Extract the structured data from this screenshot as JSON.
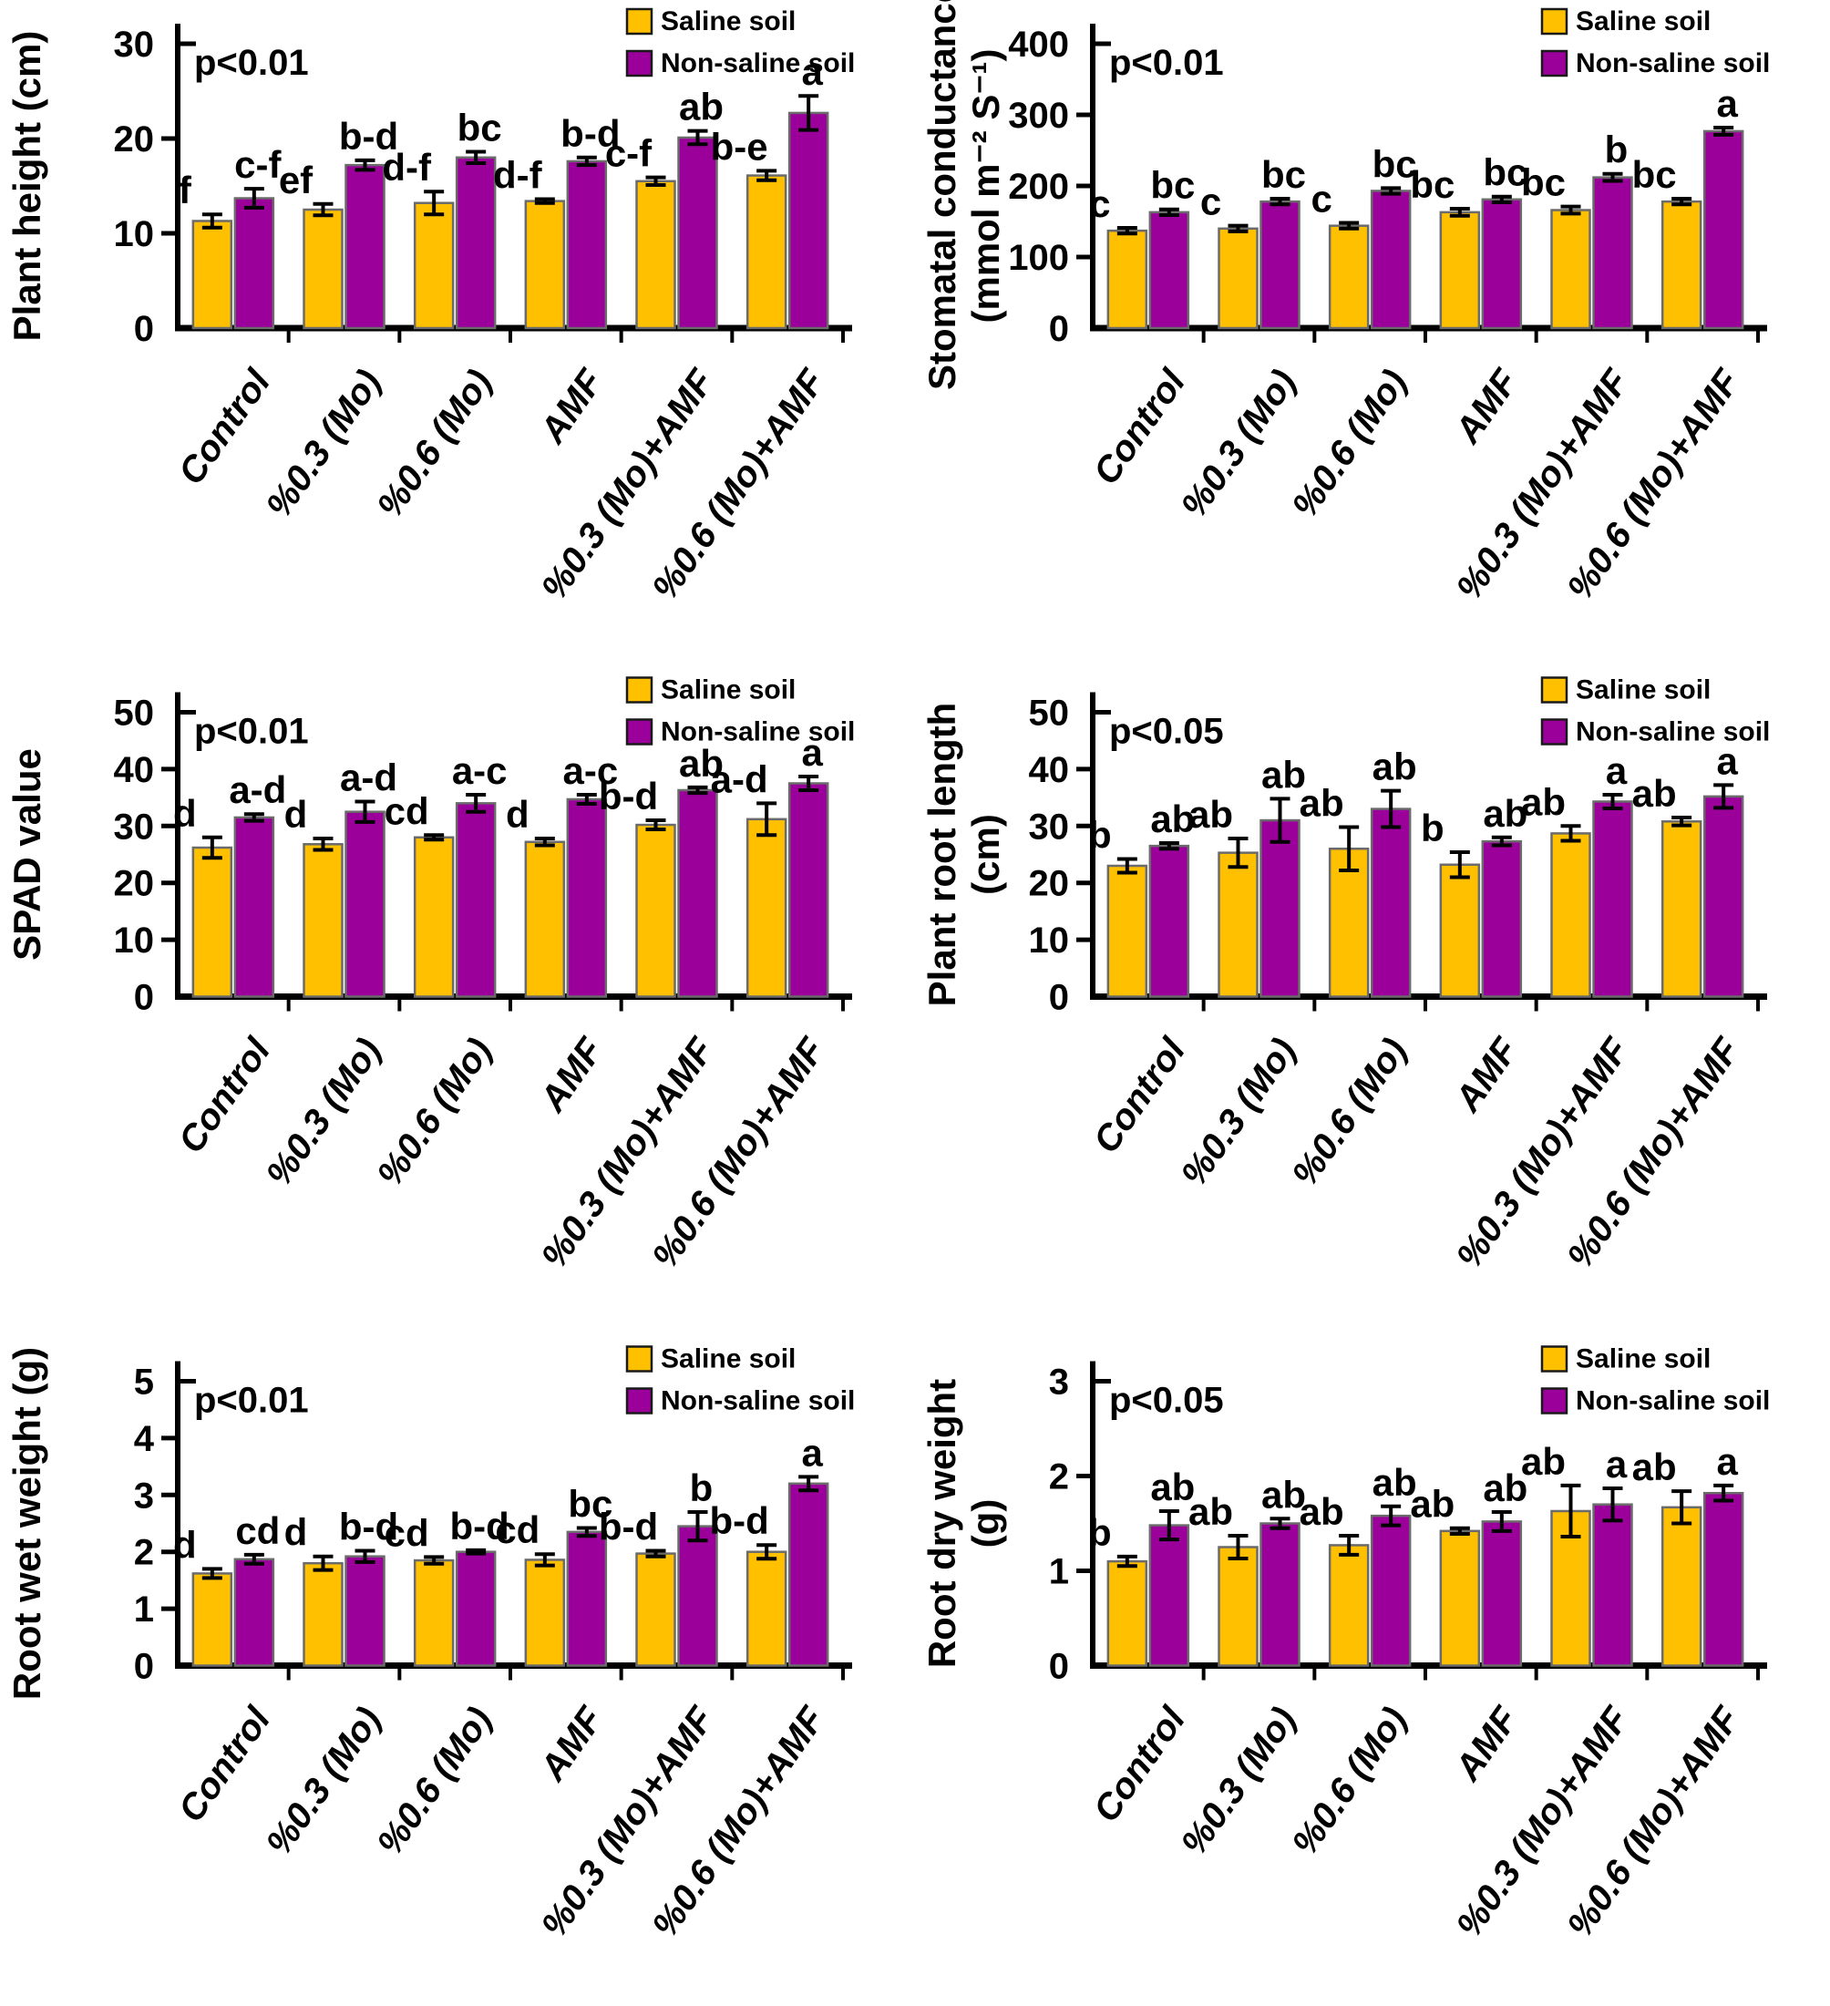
{
  "figure": {
    "legend": {
      "position": "top-right",
      "items": [
        {
          "label": "Saline soil",
          "color": "#FFC000"
        },
        {
          "label": "Non-saline soil",
          "color": "#9B009B"
        }
      ]
    },
    "colors": {
      "saline": "#FFC000",
      "non_saline": "#9B009B",
      "bar_outline": "#6B6B6B",
      "axis": "#000000"
    },
    "categories": [
      "Control",
      "%0.3 (Mo)",
      "%0.6 (Mo)",
      "AMF",
      "%0.3 (Mo)+AMF",
      "%0.6 (Mo)+AMF"
    ]
  },
  "chart_data": [
    {
      "type": "bar",
      "id": "plant-height",
      "ylabel_lines": [
        "Plant height (cm)"
      ],
      "p_label": "p<0.01",
      "ylim": [
        0,
        30
      ],
      "yticks": [
        0,
        10,
        20,
        30
      ],
      "grid": false,
      "legend_position": "top-right",
      "categories": [
        "Control",
        "%0.3 (Mo)",
        "%0.6 (Mo)",
        "AMF",
        "%0.3 (Mo)+AMF",
        "%0.6 (Mo)+AMF"
      ],
      "series": [
        {
          "name": "Saline soil",
          "color": "#FFC000",
          "values": [
            11.3,
            12.5,
            13.2,
            13.4,
            15.5,
            16.1
          ],
          "errors": [
            0.7,
            0.6,
            1.2,
            0.2,
            0.4,
            0.5
          ],
          "letters": [
            "f",
            "ef",
            "d-f",
            "d-f",
            "c-f",
            "b-e"
          ]
        },
        {
          "name": "Non-saline soil",
          "color": "#9B009B",
          "values": [
            13.7,
            17.2,
            18.0,
            17.6,
            20.1,
            22.7
          ],
          "errors": [
            1.0,
            0.5,
            0.6,
            0.4,
            0.7,
            1.8
          ],
          "letters": [
            "c-f",
            "b-d",
            "bc",
            "b-d",
            "ab",
            "a"
          ]
        }
      ]
    },
    {
      "type": "bar",
      "id": "stomatal-conductance",
      "ylabel_lines": [
        "Stomatal conductance",
        "(mmol m⁻² S⁻¹)"
      ],
      "p_label": "p<0.01",
      "ylim": [
        0,
        400
      ],
      "yticks": [
        0,
        100,
        200,
        300,
        400
      ],
      "grid": false,
      "legend_position": "top-right",
      "categories": [
        "Control",
        "%0.3 (Mo)",
        "%0.6 (Mo)",
        "AMF",
        "%0.3 (Mo)+AMF",
        "%0.6 (Mo)+AMF"
      ],
      "series": [
        {
          "name": "Saline soil",
          "color": "#FFC000",
          "values": [
            137,
            140,
            144,
            163,
            166,
            178
          ],
          "errors": [
            4,
            4,
            4,
            5,
            5,
            4
          ],
          "letters": [
            "c",
            "c",
            "c",
            "bc",
            "bc",
            "bc"
          ]
        },
        {
          "name": "Non-saline soil",
          "color": "#9B009B",
          "values": [
            163,
            178,
            193,
            181,
            212,
            277
          ],
          "errors": [
            4,
            4,
            4,
            4,
            5,
            5
          ],
          "letters": [
            "bc",
            "bc",
            "bc",
            "bc",
            "b",
            "a"
          ]
        }
      ]
    },
    {
      "type": "bar",
      "id": "spad-value",
      "ylabel_lines": [
        "SPAD value"
      ],
      "p_label": "p<0.01",
      "ylim": [
        0,
        50
      ],
      "yticks": [
        0,
        10,
        20,
        30,
        40,
        50
      ],
      "grid": false,
      "legend_position": "top-right",
      "categories": [
        "Control",
        "%0.3 (Mo)",
        "%0.6 (Mo)",
        "AMF",
        "%0.3 (Mo)+AMF",
        "%0.6 (Mo)+AMF"
      ],
      "series": [
        {
          "name": "Saline soil",
          "color": "#FFC000",
          "values": [
            26.2,
            26.8,
            28.0,
            27.2,
            30.2,
            31.2
          ],
          "errors": [
            1.8,
            1.0,
            0.4,
            0.6,
            0.8,
            2.8
          ],
          "letters": [
            "d",
            "d",
            "cd",
            "d",
            "b-d",
            "a-d"
          ]
        },
        {
          "name": "Non-saline soil",
          "color": "#9B009B",
          "values": [
            31.5,
            32.5,
            34.0,
            34.7,
            36.3,
            37.5
          ],
          "errors": [
            0.6,
            1.8,
            1.5,
            0.8,
            0.5,
            1.2
          ],
          "letters": [
            "a-d",
            "a-d",
            "a-c",
            "a-c",
            "ab",
            "a"
          ]
        }
      ]
    },
    {
      "type": "bar",
      "id": "plant-root-length",
      "ylabel_lines": [
        "Plant root length",
        "(cm)"
      ],
      "p_label": "p<0.05",
      "ylim": [
        0,
        50
      ],
      "yticks": [
        0,
        10,
        20,
        30,
        40,
        50
      ],
      "grid": false,
      "legend_position": "top-right",
      "categories": [
        "Control",
        "%0.3 (Mo)",
        "%0.6 (Mo)",
        "AMF",
        "%0.3 (Mo)+AMF",
        "%0.6 (Mo)+AMF"
      ],
      "series": [
        {
          "name": "Saline soil",
          "color": "#FFC000",
          "values": [
            23.0,
            25.3,
            26.0,
            23.2,
            28.7,
            30.8
          ],
          "errors": [
            1.2,
            2.5,
            3.8,
            2.2,
            1.3,
            0.7
          ],
          "letters": [
            "b",
            "ab",
            "ab",
            "b",
            "ab",
            "ab"
          ]
        },
        {
          "name": "Non-saline soil",
          "color": "#9B009B",
          "values": [
            26.5,
            31.0,
            33.0,
            27.3,
            34.3,
            35.2
          ],
          "errors": [
            0.5,
            3.8,
            3.2,
            0.7,
            1.2,
            2.0
          ],
          "letters": [
            "ab",
            "ab",
            "ab",
            "ab",
            "a",
            "a"
          ]
        }
      ]
    },
    {
      "type": "bar",
      "id": "root-wet-weight",
      "ylabel_lines": [
        "Root wet weight (g)"
      ],
      "p_label": "p<0.01",
      "ylim": [
        0,
        5
      ],
      "yticks": [
        0,
        1,
        2,
        3,
        4,
        5
      ],
      "grid": false,
      "legend_position": "top-right",
      "categories": [
        "Control",
        "%0.3 (Mo)",
        "%0.6 (Mo)",
        "AMF",
        "%0.3 (Mo)+AMF",
        "%0.6 (Mo)+AMF"
      ],
      "series": [
        {
          "name": "Saline soil",
          "color": "#FFC000",
          "values": [
            1.62,
            1.8,
            1.85,
            1.86,
            1.97,
            2.0
          ],
          "errors": [
            0.08,
            0.12,
            0.06,
            0.1,
            0.05,
            0.12
          ],
          "letters": [
            "d",
            "d",
            "cd",
            "cd",
            "b-d",
            "b-d"
          ]
        },
        {
          "name": "Non-saline soil",
          "color": "#9B009B",
          "values": [
            1.87,
            1.92,
            2.0,
            2.35,
            2.45,
            3.2
          ],
          "errors": [
            0.08,
            0.1,
            0.03,
            0.07,
            0.25,
            0.12
          ],
          "letters": [
            "cd",
            "b-d",
            "b-d",
            "bc",
            "b",
            "a"
          ]
        }
      ]
    },
    {
      "type": "bar",
      "id": "root-dry-weight",
      "ylabel_lines": [
        "Root dry weight",
        "(g)"
      ],
      "p_label": "p<0.05",
      "ylim": [
        0,
        3
      ],
      "yticks": [
        0,
        1,
        2,
        3
      ],
      "grid": false,
      "legend_position": "top-right",
      "categories": [
        "Control",
        "%0.3 (Mo)",
        "%0.6 (Mo)",
        "AMF",
        "%0.3 (Mo)+AMF",
        "%0.6 (Mo)+AMF"
      ],
      "series": [
        {
          "name": "Saline soil",
          "color": "#FFC000",
          "values": [
            1.1,
            1.25,
            1.27,
            1.42,
            1.63,
            1.67
          ],
          "errors": [
            0.05,
            0.12,
            0.1,
            0.03,
            0.27,
            0.17
          ],
          "letters": [
            "b",
            "ab",
            "ab",
            "ab",
            "ab",
            "ab"
          ]
        },
        {
          "name": "Non-saline soil",
          "color": "#9B009B",
          "values": [
            1.48,
            1.5,
            1.58,
            1.52,
            1.7,
            1.82
          ],
          "errors": [
            0.15,
            0.05,
            0.1,
            0.1,
            0.17,
            0.08
          ],
          "letters": [
            "ab",
            "ab",
            "ab",
            "ab",
            "a",
            "a"
          ]
        }
      ]
    }
  ]
}
